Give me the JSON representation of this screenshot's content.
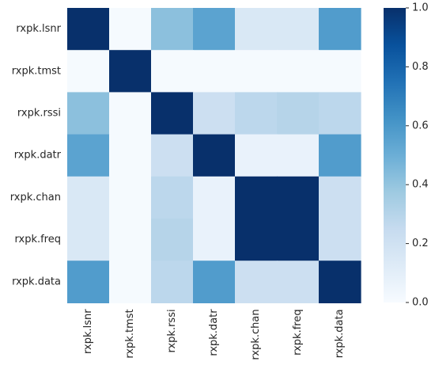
{
  "chart_data": {
    "type": "heatmap",
    "title": "",
    "xlabel": "",
    "ylabel": "",
    "x_categories": [
      "rxpk.lsnr",
      "rxpk.tmst",
      "rxpk.rssi",
      "rxpk.datr",
      "rxpk.chan",
      "rxpk.freq",
      "rxpk.data"
    ],
    "y_categories": [
      "rxpk.lsnr",
      "rxpk.tmst",
      "rxpk.rssi",
      "rxpk.datr",
      "rxpk.chan",
      "rxpk.freq",
      "rxpk.data"
    ],
    "values": [
      [
        1.0,
        0.01,
        0.42,
        0.55,
        0.15,
        0.15,
        0.58
      ],
      [
        0.01,
        1.0,
        0.01,
        0.01,
        0.01,
        0.01,
        0.01
      ],
      [
        0.42,
        0.01,
        1.0,
        0.22,
        0.28,
        0.3,
        0.28
      ],
      [
        0.55,
        0.01,
        0.22,
        1.0,
        0.07,
        0.07,
        0.58
      ],
      [
        0.15,
        0.01,
        0.28,
        0.07,
        1.0,
        1.0,
        0.22
      ],
      [
        0.15,
        0.01,
        0.3,
        0.07,
        1.0,
        1.0,
        0.22
      ],
      [
        0.58,
        0.01,
        0.28,
        0.58,
        0.22,
        0.22,
        1.0
      ]
    ],
    "colorbar": {
      "colormap": "Blues",
      "min": 0.0,
      "max": 1.0,
      "ticks": [
        "0.0",
        "0.2",
        "0.4",
        "0.6",
        "0.8",
        "1.0"
      ],
      "position": "right"
    },
    "grid": false
  },
  "colors": {
    "low": "#f7fbff",
    "high": "#08306b",
    "text": "#262626"
  }
}
